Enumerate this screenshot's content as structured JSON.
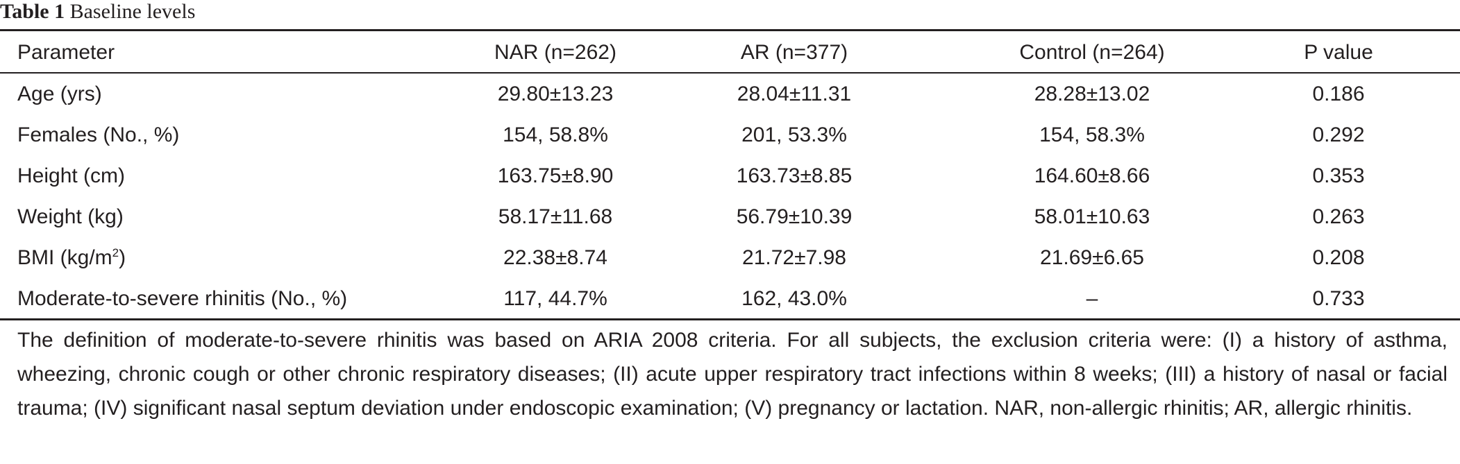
{
  "caption": {
    "label": "Table 1",
    "title": "Baseline levels"
  },
  "table": {
    "headers": [
      "Parameter",
      "NAR (n=262)",
      "AR (n=377)",
      "Control (n=264)",
      "P value"
    ],
    "rows": [
      {
        "param": "Age (yrs)",
        "nar": "29.80±13.23",
        "ar": "28.04±11.31",
        "control": "28.28±13.02",
        "p": "0.186"
      },
      {
        "param": "Females (No., %)",
        "nar": "154, 58.8%",
        "ar": "201, 53.3%",
        "control": "154, 58.3%",
        "p": "0.292"
      },
      {
        "param": "Height (cm)",
        "nar": "163.75±8.90",
        "ar": "163.73±8.85",
        "control": "164.60±8.66",
        "p": "0.353"
      },
      {
        "param": "Weight (kg)",
        "nar": "58.17±11.68",
        "ar": "56.79±10.39",
        "control": "58.01±10.63",
        "p": "0.263"
      },
      {
        "param": "BMI (kg/m",
        "param_sup": "2",
        "param_tail": ")",
        "nar": "22.38±8.74",
        "ar": "21.72±7.98",
        "control": "21.69±6.65",
        "p": "0.208"
      },
      {
        "param": "Moderate-to-severe rhinitis (No., %)",
        "nar": "117, 44.7%",
        "ar": "162, 43.0%",
        "control": "–",
        "p": "0.733"
      }
    ]
  },
  "footnote": "The definition of moderate-to-severe rhinitis was based on ARIA 2008 criteria. For all subjects, the exclusion criteria were: (I) a history of asthma, wheezing, chronic cough or other chronic respiratory diseases; (II) acute upper respiratory tract infections within 8 weeks; (III) a history of nasal or facial trauma; (IV) significant nasal septum deviation under endoscopic examination; (V) pregnancy or lactation. NAR, non-allergic rhinitis; AR, allergic rhinitis."
}
